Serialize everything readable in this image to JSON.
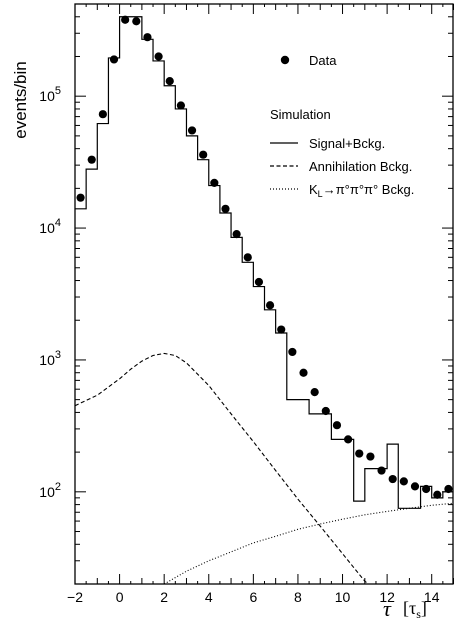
{
  "chart_data": {
    "type": "line",
    "yscale": "log",
    "xlim": [
      -2,
      15
    ],
    "ylim": [
      20,
      500000
    ],
    "ylabel": "events/bin",
    "xlabel_symbol": "τ",
    "xlabel_unit": "[τ",
    "xlabel_unit_sub": "s",
    "xlabel_unit_close": "]",
    "x_ticks": [
      -2,
      0,
      2,
      4,
      6,
      8,
      10,
      12,
      14
    ],
    "y_tick_labels": [
      {
        "value": 100,
        "base": "10",
        "exp": "2"
      },
      {
        "value": 1000,
        "base": "10",
        "exp": "3"
      },
      {
        "value": 10000,
        "base": "10",
        "exp": "4"
      },
      {
        "value": 100000,
        "base": "10",
        "exp": "5"
      }
    ],
    "legend": {
      "data_label": "Data",
      "header": "Simulation",
      "entries": [
        {
          "style": "solid",
          "label": "Signal+Bckg."
        },
        {
          "style": "dashed",
          "label": "Annihilation Bckg."
        },
        {
          "style": "dotted",
          "label_prefix": "K",
          "label_sub": "L",
          "label_suffix": "→π°π°π° Bckg."
        }
      ]
    },
    "data_points": {
      "name": "Data",
      "x": [
        -1.75,
        -1.25,
        -0.75,
        -0.25,
        0.25,
        0.75,
        1.25,
        1.75,
        2.25,
        2.75,
        3.25,
        3.75,
        4.25,
        4.75,
        5.25,
        5.75,
        6.25,
        6.75,
        7.25,
        7.75,
        8.25,
        8.75,
        9.25,
        9.75,
        10.25,
        10.75,
        11.25,
        11.75,
        12.25,
        12.75,
        13.25,
        13.75,
        14.25,
        14.75
      ],
      "y": [
        17000,
        33000,
        73000,
        190000,
        380000,
        370000,
        280000,
        200000,
        130000,
        85000,
        55000,
        36000,
        22000,
        14000,
        9000,
        6000,
        3900,
        2600,
        1700,
        1150,
        800,
        570,
        410,
        320,
        250,
        195,
        185,
        145,
        125,
        120,
        110,
        105,
        95,
        105
      ]
    },
    "signal_plus_bckg": {
      "name": "Signal+Bckg.",
      "bin_edges": [
        -2,
        -1.5,
        -1,
        -0.5,
        0,
        0.5,
        1,
        1.5,
        2,
        2.5,
        3,
        3.5,
        4,
        4.5,
        5,
        5.5,
        6,
        6.5,
        7,
        7.5,
        8,
        8.5,
        9,
        9.5,
        10,
        10.5,
        11,
        11.5,
        12,
        12.5,
        13,
        13.5,
        14,
        14.5,
        15
      ],
      "values": [
        14000,
        28000,
        62000,
        195000,
        400000,
        400000,
        270000,
        185000,
        120000,
        80000,
        50000,
        33000,
        21000,
        13000,
        8500,
        5500,
        3600,
        2400,
        1600,
        500,
        500,
        390,
        390,
        250,
        250,
        85,
        150,
        150,
        230,
        75,
        75,
        110,
        90,
        100
      ]
    },
    "annihilation_bckg": {
      "name": "Annihilation Bckg.",
      "x": [
        -2,
        -1,
        0,
        0.5,
        1,
        1.5,
        2,
        2.5,
        3,
        4,
        5,
        6,
        7,
        8,
        9,
        10,
        11,
        11.5
      ],
      "y": [
        450,
        540,
        720,
        850,
        980,
        1080,
        1120,
        1080,
        950,
        640,
        390,
        240,
        145,
        88,
        55,
        34,
        21,
        18
      ]
    },
    "kl_bckg": {
      "name": "K_L→π°π°π° Bckg.",
      "x": [
        2,
        3,
        4,
        5,
        6,
        7,
        8,
        9,
        10,
        11,
        12,
        13,
        14,
        15
      ],
      "y": [
        20,
        25,
        30,
        35,
        41,
        46,
        52,
        57,
        62,
        67,
        71,
        75,
        79,
        82
      ]
    }
  }
}
